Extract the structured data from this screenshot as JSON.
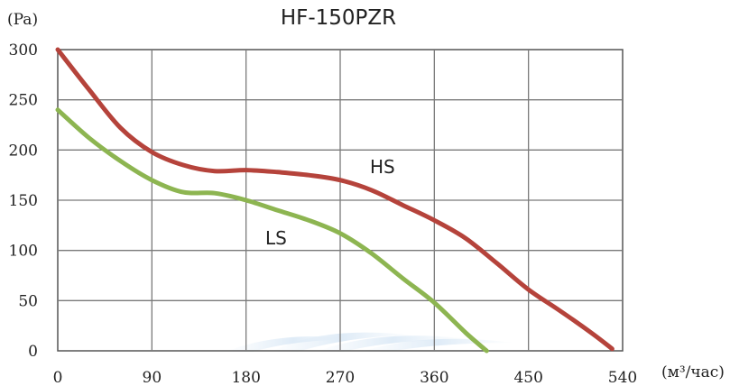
{
  "chart_data": {
    "type": "line",
    "title": "HF-150PZR",
    "ylabel": "(Pa)",
    "xlabel": "(м³/час)",
    "xlim": [
      0,
      540
    ],
    "ylim": [
      0,
      300
    ],
    "x_ticks": [
      "0",
      "90",
      "180",
      "270",
      "360",
      "450",
      "540"
    ],
    "y_ticks": [
      "0",
      "50",
      "100",
      "150",
      "200",
      "250",
      "300"
    ],
    "grid": true,
    "series": [
      {
        "name": "HS",
        "color": "#b5433b",
        "x": [
          0,
          30,
          60,
          90,
          120,
          150,
          180,
          210,
          240,
          270,
          300,
          330,
          360,
          390,
          420,
          450,
          480,
          510,
          530
        ],
        "y": [
          300,
          260,
          222,
          198,
          185,
          179,
          180,
          178,
          175,
          170,
          160,
          145,
          130,
          112,
          87,
          61,
          40,
          18,
          2
        ]
      },
      {
        "name": "LS",
        "color": "#8db551",
        "x": [
          0,
          30,
          60,
          90,
          120,
          150,
          180,
          210,
          240,
          270,
          300,
          330,
          360,
          390,
          410
        ],
        "y": [
          240,
          212,
          189,
          170,
          158,
          157,
          150,
          140,
          130,
          117,
          97,
          72,
          48,
          18,
          0
        ]
      }
    ]
  }
}
